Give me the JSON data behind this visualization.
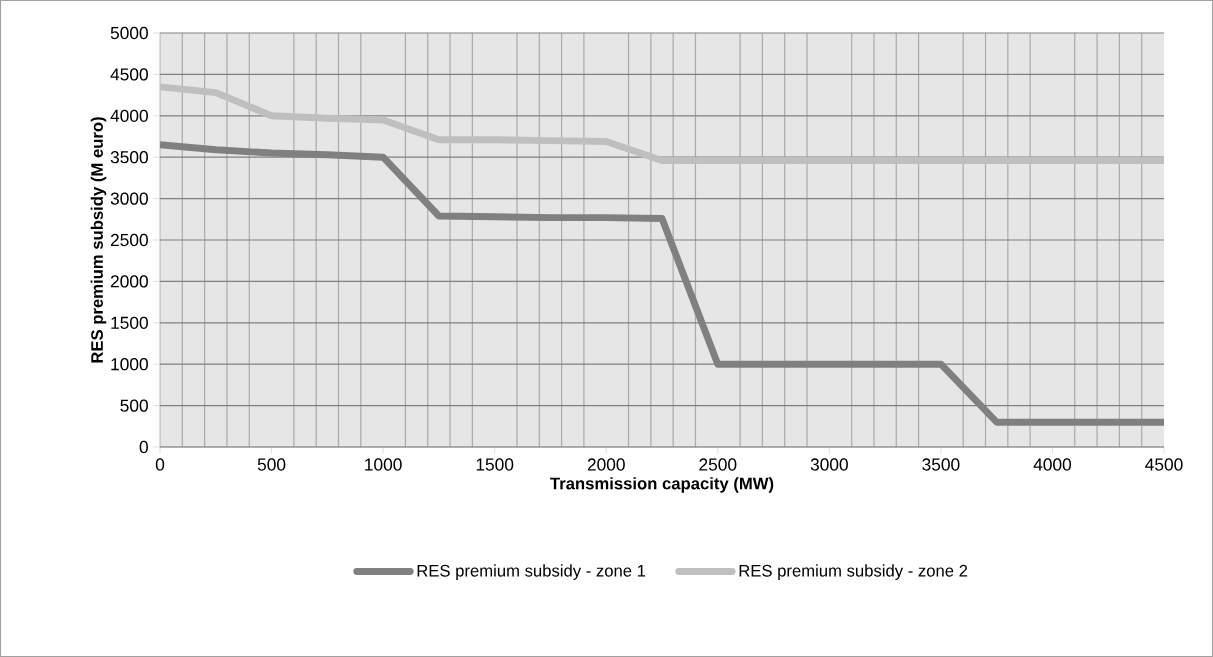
{
  "chart_data": {
    "type": "line",
    "xlabel": "Transmission capacity (MW)",
    "ylabel": "RES premium subsidy  (M euro)",
    "x": [
      0,
      250,
      500,
      750,
      1000,
      1250,
      1500,
      1750,
      2000,
      2250,
      2500,
      2750,
      3000,
      3250,
      3500,
      3750,
      4000,
      4250,
      4500
    ],
    "series": [
      {
        "name": "RES premium subsidy - zone 1",
        "color": "#808080",
        "values": [
          3650,
          3590,
          3550,
          3530,
          3500,
          2790,
          2780,
          2770,
          2770,
          2760,
          1000,
          1000,
          1000,
          1000,
          1000,
          300,
          300,
          300,
          300
        ]
      },
      {
        "name": "RES premium subsidy - zone 2",
        "color": "#bfbfbf",
        "values": [
          4350,
          4280,
          4000,
          3970,
          3950,
          3710,
          3710,
          3700,
          3690,
          3460,
          3460,
          3460,
          3460,
          3460,
          3460,
          3460,
          3460,
          3460,
          3460
        ]
      }
    ],
    "xlim": [
      0,
      4500
    ],
    "xticks": [
      0,
      500,
      1000,
      1500,
      2000,
      2500,
      3000,
      3500,
      4000,
      4500
    ],
    "ylim": [
      0,
      5000
    ],
    "yticks": [
      0,
      500,
      1000,
      1500,
      2000,
      2500,
      3000,
      3500,
      4000,
      4500,
      5000
    ],
    "grid": true,
    "legend": "bottom",
    "marker": "none",
    "line_style": "solid"
  }
}
